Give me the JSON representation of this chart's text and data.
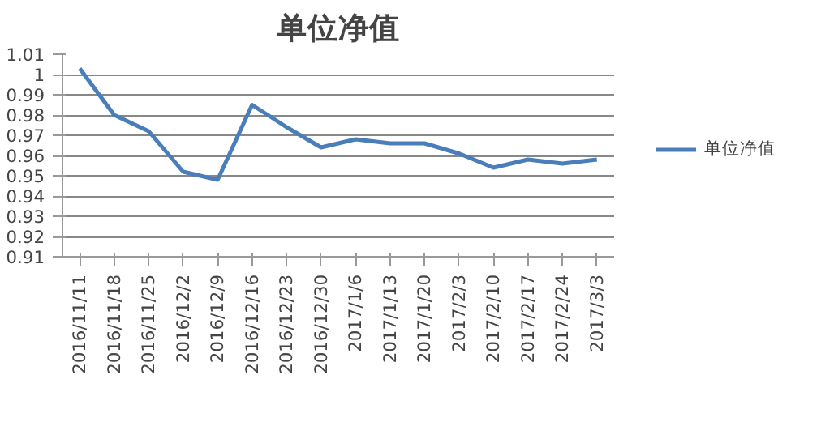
{
  "chart_data": {
    "type": "line",
    "title": "单位净值",
    "categories": [
      "2016/11/11",
      "2016/11/18",
      "2016/11/25",
      "2016/12/2",
      "2016/12/9",
      "2016/12/16",
      "2016/12/23",
      "2016/12/30",
      "2017/1/6",
      "2017/1/13",
      "2017/1/20",
      "2017/2/3",
      "2017/2/10",
      "2017/2/17",
      "2017/2/24",
      "2017/3/3"
    ],
    "series": [
      {
        "name": "单位净值",
        "color": "#4a7ebb",
        "values": [
          1.003,
          0.98,
          0.972,
          0.952,
          0.948,
          0.985,
          0.974,
          0.964,
          0.968,
          0.966,
          0.966,
          0.961,
          0.954,
          0.958,
          0.956,
          0.958
        ]
      }
    ],
    "ylim": [
      0.91,
      1.01
    ],
    "yticks": [
      0.91,
      0.92,
      0.93,
      0.94,
      0.95,
      0.96,
      0.97,
      0.98,
      0.99,
      1,
      1.01
    ],
    "grid": "y",
    "legend": "right"
  }
}
